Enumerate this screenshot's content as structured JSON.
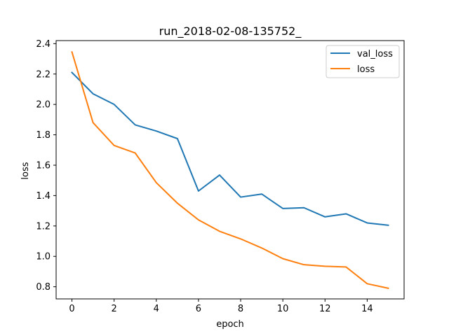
{
  "chart_data": {
    "type": "line",
    "title": "run_2018-02-08-135752_",
    "xlabel": "epoch",
    "ylabel": "loss",
    "xlim": [
      -0.75,
      15.75
    ],
    "ylim": [
      0.72,
      2.42
    ],
    "x": [
      0,
      1,
      2,
      3,
      4,
      5,
      6,
      7,
      8,
      9,
      10,
      11,
      12,
      13,
      14,
      15
    ],
    "xticks": [
      0,
      2,
      4,
      6,
      8,
      10,
      12,
      14
    ],
    "xtick_labels": [
      "0",
      "2",
      "4",
      "6",
      "8",
      "10",
      "12",
      "14"
    ],
    "yticks": [
      0.8,
      1.0,
      1.2,
      1.4,
      1.6,
      1.8,
      2.0,
      2.2,
      2.4
    ],
    "ytick_labels": [
      "0.8",
      "1.0",
      "1.2",
      "1.4",
      "1.6",
      "1.8",
      "2.0",
      "2.2",
      "2.4"
    ],
    "grid": false,
    "legend_position": "top-right",
    "series": [
      {
        "name": "val_loss",
        "color": "#1f77b4",
        "values": [
          2.21,
          2.07,
          2.0,
          1.865,
          1.825,
          1.775,
          1.43,
          1.535,
          1.39,
          1.41,
          1.315,
          1.32,
          1.26,
          1.28,
          1.22,
          1.205
        ]
      },
      {
        "name": "loss",
        "color": "#ff7f0e",
        "values": [
          2.345,
          1.88,
          1.73,
          1.68,
          1.485,
          1.35,
          1.24,
          1.165,
          1.115,
          1.055,
          0.985,
          0.945,
          0.935,
          0.93,
          0.82,
          0.79
        ]
      }
    ]
  }
}
